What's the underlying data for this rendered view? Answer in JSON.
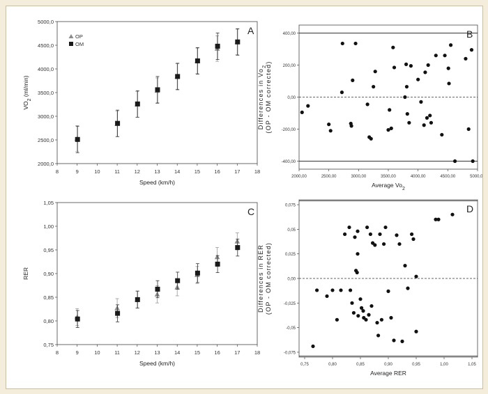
{
  "chart_data": [
    {
      "panel": "A",
      "type": "scatter",
      "xlabel": "Speed (km/h)",
      "ylabel_main": "VO",
      "ylabel_sub": "2",
      "ylabel_unit": " (ml/min)",
      "xlim": [
        8,
        18
      ],
      "ylim": [
        2000,
        5000
      ],
      "xticks": [
        "8",
        "9",
        "10",
        "11",
        "12",
        "13",
        "14",
        "15",
        "16",
        "17",
        "18"
      ],
      "yticks": [
        "2000,0",
        "2500,0",
        "3000,0",
        "3500,0",
        "4000,0",
        "4500,0",
        "5000,0"
      ],
      "legend": {
        "position": "top-left"
      },
      "series": [
        {
          "name": "OP",
          "marker": "triangle",
          "color": "#8c8c8c",
          "x": [
            9,
            11,
            12,
            13,
            14,
            15,
            16,
            17
          ],
          "y": [
            2530,
            2840,
            3250,
            3540,
            3840,
            4170,
            4430,
            4570
          ],
          "err": [
            270,
            270,
            270,
            270,
            270,
            270,
            270,
            270
          ]
        },
        {
          "name": "OM",
          "marker": "square",
          "color": "#1a1a1a",
          "x": [
            9,
            11,
            12,
            13,
            14,
            15,
            16,
            17
          ],
          "y": [
            2510,
            2850,
            3260,
            3560,
            3840,
            4170,
            4480,
            4570
          ],
          "err": [
            280,
            280,
            280,
            280,
            280,
            280,
            280,
            280
          ]
        }
      ]
    },
    {
      "panel": "B",
      "type": "scatter",
      "xlabel_main": "Average Vo",
      "xlabel_sub": "2",
      "ylabel_line1_main": "Differences in Vo",
      "ylabel_line1_sub": "2",
      "ylabel_line2": "(OP - OM corrected)",
      "xlim": [
        2000,
        5000
      ],
      "ylim": [
        -450,
        450
      ],
      "xticks": [
        "2000,00",
        "2500,00",
        "3000,00",
        "3500,00",
        "4000,00",
        "4500,00",
        "5000,00"
      ],
      "yticks": [
        "-400,00",
        "-200,00",
        "0,00",
        "200,00",
        "400,00"
      ],
      "reference_lines": {
        "mean": 0,
        "upper": 400,
        "lower": -400
      },
      "points": [
        {
          "x": 2050,
          "y": -95
        },
        {
          "x": 2150,
          "y": -55
        },
        {
          "x": 2500,
          "y": -170
        },
        {
          "x": 2530,
          "y": -210
        },
        {
          "x": 2730,
          "y": 335
        },
        {
          "x": 2720,
          "y": 30
        },
        {
          "x": 2870,
          "y": -165
        },
        {
          "x": 2880,
          "y": -180
        },
        {
          "x": 2900,
          "y": 105
        },
        {
          "x": 2950,
          "y": 335
        },
        {
          "x": 3150,
          "y": -45
        },
        {
          "x": 3180,
          "y": -250
        },
        {
          "x": 3210,
          "y": -260
        },
        {
          "x": 3250,
          "y": 65
        },
        {
          "x": 3280,
          "y": 160
        },
        {
          "x": 3500,
          "y": -205
        },
        {
          "x": 3520,
          "y": -80
        },
        {
          "x": 3550,
          "y": -195
        },
        {
          "x": 3580,
          "y": 310
        },
        {
          "x": 3600,
          "y": 185
        },
        {
          "x": 3780,
          "y": 0
        },
        {
          "x": 3800,
          "y": 205
        },
        {
          "x": 3810,
          "y": 65
        },
        {
          "x": 3820,
          "y": -105
        },
        {
          "x": 3850,
          "y": -160
        },
        {
          "x": 3880,
          "y": 195
        },
        {
          "x": 4000,
          "y": 110
        },
        {
          "x": 4050,
          "y": -30
        },
        {
          "x": 4100,
          "y": -175
        },
        {
          "x": 4120,
          "y": 155
        },
        {
          "x": 4150,
          "y": -130
        },
        {
          "x": 4170,
          "y": 200
        },
        {
          "x": 4200,
          "y": -115
        },
        {
          "x": 4220,
          "y": -160
        },
        {
          "x": 4300,
          "y": 260
        },
        {
          "x": 4400,
          "y": -235
        },
        {
          "x": 4450,
          "y": 260
        },
        {
          "x": 4510,
          "y": 180
        },
        {
          "x": 4520,
          "y": 85
        },
        {
          "x": 4550,
          "y": 325
        },
        {
          "x": 4620,
          "y": -400
        },
        {
          "x": 4800,
          "y": 240
        },
        {
          "x": 4850,
          "y": -200
        },
        {
          "x": 4900,
          "y": 295
        },
        {
          "x": 4920,
          "y": -400
        }
      ]
    },
    {
      "panel": "C",
      "type": "scatter",
      "xlabel": "Speed (km/h)",
      "ylabel": "RER",
      "xlim": [
        8,
        18
      ],
      "ylim": [
        0.75,
        1.05
      ],
      "xticks": [
        "8",
        "9",
        "10",
        "11",
        "12",
        "13",
        "14",
        "15",
        "16",
        "17",
        "18"
      ],
      "yticks": [
        "0,75",
        "0,80",
        "0,85",
        "0,90",
        "0,95",
        "1,00",
        "1,05"
      ],
      "series": [
        {
          "name": "OP",
          "marker": "triangle",
          "color": "#8c8c8c",
          "x": [
            9,
            11,
            12,
            13,
            14,
            15,
            16,
            17
          ],
          "y": [
            0.808,
            0.827,
            0.845,
            0.856,
            0.871,
            0.897,
            0.935,
            0.968
          ],
          "err": [
            0.018,
            0.02,
            0.018,
            0.018,
            0.018,
            0.018,
            0.02,
            0.018
          ]
        },
        {
          "name": "OM",
          "marker": "square",
          "color": "#1a1a1a",
          "x": [
            9,
            11,
            12,
            13,
            14,
            15,
            16,
            17
          ],
          "y": [
            0.804,
            0.816,
            0.845,
            0.867,
            0.885,
            0.901,
            0.92,
            0.955
          ],
          "err": [
            0.018,
            0.018,
            0.018,
            0.018,
            0.018,
            0.02,
            0.018,
            0.018
          ]
        }
      ]
    },
    {
      "panel": "D",
      "type": "scatter",
      "xlabel": "Average RER",
      "ylabel_line1": "Differences in RER",
      "ylabel_line2": "(OP - OM corrected)",
      "xlim": [
        0.74,
        1.06
      ],
      "ylim": [
        -0.08,
        0.08
      ],
      "xticks": [
        "0,75",
        "0,80",
        "0,85",
        "0,90",
        "0,95",
        "1,00",
        "1,05"
      ],
      "yticks": [
        "-0,075",
        "-0,05",
        "-0,025",
        "0,00",
        "0,025",
        "0,05",
        "0,075"
      ],
      "reference_lines": {
        "mean": 0,
        "upper": 0.079,
        "lower": -0.079
      },
      "points": [
        {
          "x": 0.765,
          "y": -0.069
        },
        {
          "x": 0.772,
          "y": -0.012
        },
        {
          "x": 0.79,
          "y": -0.018
        },
        {
          "x": 0.8,
          "y": -0.012
        },
        {
          "x": 0.808,
          "y": -0.042
        },
        {
          "x": 0.815,
          "y": -0.012
        },
        {
          "x": 0.822,
          "y": 0.045
        },
        {
          "x": 0.83,
          "y": 0.052
        },
        {
          "x": 0.832,
          "y": -0.012
        },
        {
          "x": 0.835,
          "y": -0.025
        },
        {
          "x": 0.838,
          "y": -0.035
        },
        {
          "x": 0.84,
          "y": 0.042
        },
        {
          "x": 0.842,
          "y": 0.008
        },
        {
          "x": 0.844,
          "y": 0.006
        },
        {
          "x": 0.845,
          "y": 0.048
        },
        {
          "x": 0.845,
          "y": 0.025
        },
        {
          "x": 0.846,
          "y": -0.038
        },
        {
          "x": 0.85,
          "y": -0.021
        },
        {
          "x": 0.852,
          "y": -0.03
        },
        {
          "x": 0.855,
          "y": -0.033
        },
        {
          "x": 0.856,
          "y": -0.04
        },
        {
          "x": 0.86,
          "y": -0.042
        },
        {
          "x": 0.862,
          "y": 0.052
        },
        {
          "x": 0.865,
          "y": -0.037
        },
        {
          "x": 0.868,
          "y": 0.045
        },
        {
          "x": 0.87,
          "y": -0.028
        },
        {
          "x": 0.872,
          "y": 0.036
        },
        {
          "x": 0.876,
          "y": 0.034
        },
        {
          "x": 0.88,
          "y": -0.045
        },
        {
          "x": 0.882,
          "y": -0.058
        },
        {
          "x": 0.885,
          "y": 0.045
        },
        {
          "x": 0.888,
          "y": -0.042
        },
        {
          "x": 0.892,
          "y": 0.035
        },
        {
          "x": 0.895,
          "y": 0.052
        },
        {
          "x": 0.9,
          "y": -0.013
        },
        {
          "x": 0.905,
          "y": -0.04
        },
        {
          "x": 0.91,
          "y": -0.063
        },
        {
          "x": 0.915,
          "y": 0.044
        },
        {
          "x": 0.92,
          "y": 0.035
        },
        {
          "x": 0.925,
          "y": -0.064
        },
        {
          "x": 0.93,
          "y": 0.013
        },
        {
          "x": 0.935,
          "y": -0.01
        },
        {
          "x": 0.942,
          "y": 0.045
        },
        {
          "x": 0.945,
          "y": 0.04
        },
        {
          "x": 0.95,
          "y": 0.002
        },
        {
          "x": 0.95,
          "y": -0.054
        },
        {
          "x": 0.985,
          "y": 0.06
        },
        {
          "x": 0.99,
          "y": 0.06
        },
        {
          "x": 1.015,
          "y": 0.065
        }
      ]
    }
  ]
}
